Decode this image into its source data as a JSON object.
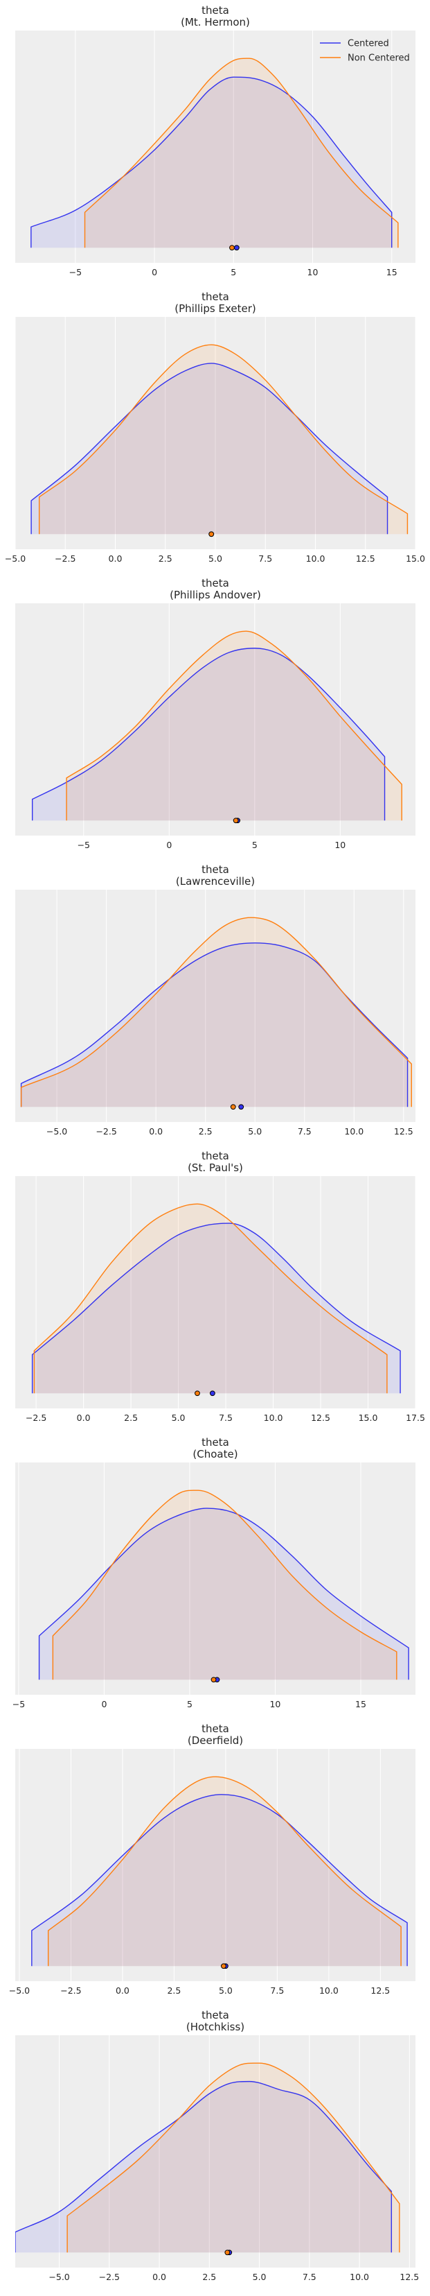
{
  "colors": {
    "centered": "#3333ee",
    "non_centered": "#ff7f0e",
    "panel_bg": "#eeeeee",
    "grid": "#ffffff"
  },
  "legend": {
    "placement": "top-right",
    "centered_label": "Centered",
    "non_centered_label": "Non Centered"
  },
  "chart_data": [
    {
      "type": "area",
      "title": "theta",
      "subtitle": "(Mt. Hermon)",
      "xlim": [
        -8.8,
        16.5
      ],
      "xticks": [
        -5,
        0,
        5,
        10,
        15
      ],
      "xtick_labels": [
        "−5",
        "0",
        "5",
        "10",
        "15"
      ],
      "grid": true,
      "legend": true,
      "series": [
        {
          "name": "Centered",
          "support": [
            -7.8,
            15.0
          ],
          "ymax": 0.083,
          "points": [
            [
              -7.8,
              0.01
            ],
            [
              -5,
              0.018
            ],
            [
              -2,
              0.034
            ],
            [
              0,
              0.047
            ],
            [
              2,
              0.063
            ],
            [
              3.5,
              0.076
            ],
            [
              5,
              0.082
            ],
            [
              6.5,
              0.081
            ],
            [
              8,
              0.076
            ],
            [
              10,
              0.063
            ],
            [
              12,
              0.044
            ],
            [
              13.5,
              0.03
            ],
            [
              15.0,
              0.017
            ]
          ],
          "mean": 5.2
        },
        {
          "name": "Non Centered",
          "support": [
            -4.4,
            15.4
          ],
          "points": [
            [
              -4.4,
              0.017
            ],
            [
              -2,
              0.034
            ],
            [
              0,
              0.05
            ],
            [
              2,
              0.067
            ],
            [
              3.5,
              0.081
            ],
            [
              5,
              0.09
            ],
            [
              6,
              0.091
            ],
            [
              7.5,
              0.083
            ],
            [
              9,
              0.068
            ],
            [
              11,
              0.046
            ],
            [
              13,
              0.028
            ],
            [
              15.4,
              0.012
            ]
          ],
          "mean": 4.9
        }
      ]
    },
    {
      "type": "area",
      "title": "theta",
      "subtitle": "(Phillips Exeter)",
      "xlim": [
        -5,
        15
      ],
      "xticks": [
        -5,
        -2.5,
        0,
        2.5,
        5,
        7.5,
        10,
        12.5,
        15
      ],
      "xtick_labels": [
        "−5.0",
        "−2.5",
        "0.0",
        "2.5",
        "5.0",
        "7.5",
        "10.0",
        "12.5",
        "15.0"
      ],
      "grid": true,
      "legend": false,
      "series": [
        {
          "name": "Centered",
          "support": [
            -4.2,
            13.6
          ],
          "points": [
            [
              -4.2,
              0.018
            ],
            [
              -2,
              0.037
            ],
            [
              0,
              0.058
            ],
            [
              2,
              0.078
            ],
            [
              3.5,
              0.088
            ],
            [
              4.8,
              0.092
            ],
            [
              6,
              0.088
            ],
            [
              7.5,
              0.079
            ],
            [
              9,
              0.064
            ],
            [
              10.5,
              0.048
            ],
            [
              12,
              0.034
            ],
            [
              13.6,
              0.02
            ]
          ],
          "mean": 4.8
        },
        {
          "name": "Non Centered",
          "support": [
            -3.8,
            14.6
          ],
          "points": [
            [
              -3.8,
              0.02
            ],
            [
              -2,
              0.034
            ],
            [
              0,
              0.056
            ],
            [
              2,
              0.082
            ],
            [
              3.5,
              0.097
            ],
            [
              4.8,
              0.102
            ],
            [
              6,
              0.097
            ],
            [
              7.5,
              0.083
            ],
            [
              9,
              0.064
            ],
            [
              10.5,
              0.045
            ],
            [
              12,
              0.029
            ],
            [
              14.6,
              0.011
            ]
          ],
          "mean": 4.8
        }
      ]
    },
    {
      "type": "area",
      "title": "theta",
      "subtitle": "(Phillips Andover)",
      "xlim": [
        -9.0,
        14.4
      ],
      "xticks": [
        -5,
        0,
        5,
        10
      ],
      "xtick_labels": [
        "−5",
        "0",
        "5",
        "10"
      ],
      "grid": true,
      "legend": false,
      "series": [
        {
          "name": "Centered",
          "support": [
            -8.0,
            12.6
          ],
          "points": [
            [
              -8.0,
              0.01
            ],
            [
              -6,
              0.018
            ],
            [
              -4,
              0.028
            ],
            [
              -2,
              0.042
            ],
            [
              0,
              0.058
            ],
            [
              2,
              0.072
            ],
            [
              3.5,
              0.079
            ],
            [
              5,
              0.081
            ],
            [
              6.5,
              0.078
            ],
            [
              8,
              0.069
            ],
            [
              10,
              0.053
            ],
            [
              11.5,
              0.04
            ],
            [
              12.6,
              0.03
            ]
          ],
          "mean": 4.0
        },
        {
          "name": "Non Centered",
          "support": [
            -6.0,
            13.6
          ],
          "points": [
            [
              -6.0,
              0.02
            ],
            [
              -4,
              0.03
            ],
            [
              -2,
              0.044
            ],
            [
              0,
              0.062
            ],
            [
              2,
              0.078
            ],
            [
              3.5,
              0.087
            ],
            [
              4.5,
              0.089
            ],
            [
              6,
              0.083
            ],
            [
              8,
              0.068
            ],
            [
              10,
              0.049
            ],
            [
              12,
              0.031
            ],
            [
              13.6,
              0.017
            ]
          ],
          "mean": 3.9
        }
      ]
    },
    {
      "type": "area",
      "title": "theta",
      "subtitle": "(Lawrenceville)",
      "xlim": [
        -7.1,
        13.1
      ],
      "xticks": [
        -5,
        -2.5,
        0,
        2.5,
        5,
        7.5,
        10,
        12.5
      ],
      "xtick_labels": [
        "−5.0",
        "−2.5",
        "0.0",
        "2.5",
        "5.0",
        "7.5",
        "10.0",
        "12.5"
      ],
      "grid": true,
      "legend": false,
      "series": [
        {
          "name": "Centered",
          "support": [
            -6.8,
            12.7
          ],
          "points": [
            [
              -6.8,
              0.012
            ],
            [
              -4,
              0.026
            ],
            [
              -2,
              0.042
            ],
            [
              0,
              0.06
            ],
            [
              2,
              0.075
            ],
            [
              3.5,
              0.082
            ],
            [
              5,
              0.084
            ],
            [
              6.5,
              0.082
            ],
            [
              8,
              0.075
            ],
            [
              9.5,
              0.058
            ],
            [
              11,
              0.042
            ],
            [
              12.7,
              0.025
            ]
          ],
          "mean": 4.3
        },
        {
          "name": "Non Centered",
          "support": [
            -6.8,
            12.9
          ],
          "points": [
            [
              -6.8,
              0.01
            ],
            [
              -4,
              0.022
            ],
            [
              -2,
              0.038
            ],
            [
              0,
              0.058
            ],
            [
              2,
              0.08
            ],
            [
              3.5,
              0.093
            ],
            [
              4.8,
              0.097
            ],
            [
              6,
              0.094
            ],
            [
              8,
              0.076
            ],
            [
              10,
              0.052
            ],
            [
              12.9,
              0.022
            ]
          ],
          "mean": 3.9
        }
      ]
    },
    {
      "type": "area",
      "title": "theta",
      "subtitle": "(St. Paul's)",
      "xlim": [
        -3.6,
        17.5
      ],
      "xticks": [
        -2.5,
        0,
        2.5,
        5,
        7.5,
        10,
        12.5,
        15,
        17.5
      ],
      "xtick_labels": [
        "−2.5",
        "0.0",
        "2.5",
        "5.0",
        "7.5",
        "10.0",
        "12.5",
        "15.0",
        "17.5"
      ],
      "grid": true,
      "legend": false,
      "series": [
        {
          "name": "Centered",
          "support": [
            -2.7,
            16.7
          ],
          "points": [
            [
              -2.7,
              0.02
            ],
            [
              -0.5,
              0.038
            ],
            [
              1.5,
              0.056
            ],
            [
              3.5,
              0.072
            ],
            [
              5,
              0.082
            ],
            [
              6.5,
              0.087
            ],
            [
              7.7,
              0.088
            ],
            [
              9,
              0.083
            ],
            [
              10.5,
              0.07
            ],
            [
              12,
              0.055
            ],
            [
              14,
              0.038
            ],
            [
              16.7,
              0.022
            ]
          ],
          "mean": 6.8
        },
        {
          "name": "Non Centered",
          "support": [
            -2.6,
            16.0
          ],
          "points": [
            [
              -2.6,
              0.022
            ],
            [
              -0.5,
              0.042
            ],
            [
              1.5,
              0.068
            ],
            [
              3.5,
              0.088
            ],
            [
              5,
              0.096
            ],
            [
              6,
              0.098
            ],
            [
              7.5,
              0.091
            ],
            [
              9,
              0.077
            ],
            [
              11,
              0.058
            ],
            [
              13,
              0.041
            ],
            [
              16.0,
              0.02
            ]
          ],
          "mean": 6.0
        }
      ]
    },
    {
      "type": "area",
      "title": "theta",
      "subtitle": "(Choate)",
      "xlim": [
        -5.2,
        18.2
      ],
      "xticks": [
        -5,
        0,
        5,
        10,
        15
      ],
      "xtick_labels": [
        "−5",
        "0",
        "5",
        "10",
        "15"
      ],
      "grid": true,
      "legend": false,
      "series": [
        {
          "name": "Centered",
          "support": [
            -3.8,
            17.8
          ],
          "points": [
            [
              -3.8,
              0.022
            ],
            [
              -1.5,
              0.04
            ],
            [
              0.5,
              0.058
            ],
            [
              2.5,
              0.074
            ],
            [
              4.5,
              0.083
            ],
            [
              6,
              0.086
            ],
            [
              7.5,
              0.084
            ],
            [
              9,
              0.077
            ],
            [
              11,
              0.062
            ],
            [
              13,
              0.045
            ],
            [
              15,
              0.032
            ],
            [
              17.8,
              0.016
            ]
          ],
          "mean": 6.6
        },
        {
          "name": "Non Centered",
          "support": [
            -3.0,
            17.1
          ],
          "points": [
            [
              -3.0,
              0.022
            ],
            [
              -1,
              0.04
            ],
            [
              1,
              0.064
            ],
            [
              3,
              0.084
            ],
            [
              4.5,
              0.094
            ],
            [
              5.5,
              0.095
            ],
            [
              7,
              0.089
            ],
            [
              9,
              0.072
            ],
            [
              11,
              0.052
            ],
            [
              13,
              0.036
            ],
            [
              15,
              0.024
            ],
            [
              17.1,
              0.014
            ]
          ],
          "mean": 6.4
        }
      ]
    },
    {
      "type": "area",
      "title": "theta",
      "subtitle": "(Deerfield)",
      "xlim": [
        -5.2,
        14.2
      ],
      "xticks": [
        -5,
        -2.5,
        0,
        2.5,
        5,
        7.5,
        10,
        12.5
      ],
      "xtick_labels": [
        "−5.0",
        "−2.5",
        "0.0",
        "2.5",
        "5.0",
        "7.5",
        "10.0",
        "12.5"
      ],
      "grid": true,
      "legend": false,
      "series": [
        {
          "name": "Centered",
          "support": [
            -4.4,
            13.8
          ],
          "points": [
            [
              -4.4,
              0.018
            ],
            [
              -2,
              0.036
            ],
            [
              0,
              0.056
            ],
            [
              2,
              0.075
            ],
            [
              3.5,
              0.084
            ],
            [
              4.8,
              0.087
            ],
            [
              6,
              0.085
            ],
            [
              7.5,
              0.077
            ],
            [
              9,
              0.063
            ],
            [
              10.5,
              0.048
            ],
            [
              12,
              0.034
            ],
            [
              13.8,
              0.022
            ]
          ],
          "mean": 5.0
        },
        {
          "name": "Non Centered",
          "support": [
            -3.6,
            13.5
          ],
          "points": [
            [
              -3.6,
              0.018
            ],
            [
              -2,
              0.031
            ],
            [
              0,
              0.054
            ],
            [
              2,
              0.08
            ],
            [
              3.5,
              0.093
            ],
            [
              4.5,
              0.096
            ],
            [
              6,
              0.091
            ],
            [
              7.5,
              0.078
            ],
            [
              9,
              0.061
            ],
            [
              11,
              0.04
            ],
            [
              13.5,
              0.02
            ]
          ],
          "mean": 4.9
        }
      ]
    },
    {
      "type": "area",
      "title": "theta",
      "subtitle": "(Hotchkiss)",
      "xlim": [
        -7.2,
        12.8
      ],
      "xticks": [
        -5,
        -2.5,
        0,
        2.5,
        5,
        7.5,
        10,
        12.5
      ],
      "xtick_labels": [
        "−5.0",
        "−2.5",
        "0.0",
        "2.5",
        "5.0",
        "7.5",
        "10.0",
        "12.5"
      ],
      "grid": true,
      "legend": false,
      "series": [
        {
          "name": "Centered",
          "support": [
            -7.2,
            11.6
          ],
          "points": [
            [
              -7.2,
              0.01
            ],
            [
              -5,
              0.02
            ],
            [
              -3,
              0.036
            ],
            [
              -1,
              0.052
            ],
            [
              1,
              0.066
            ],
            [
              2.5,
              0.078
            ],
            [
              3.5,
              0.083
            ],
            [
              4.5,
              0.084
            ],
            [
              6,
              0.08
            ],
            [
              7.5,
              0.075
            ],
            [
              9,
              0.06
            ],
            [
              10.5,
              0.042
            ],
            [
              11.6,
              0.03
            ]
          ],
          "mean": 3.5
        },
        {
          "name": "Non Centered",
          "support": [
            -4.6,
            12.0
          ],
          "points": [
            [
              -4.6,
              0.018
            ],
            [
              -3,
              0.03
            ],
            [
              -1,
              0.046
            ],
            [
              1,
              0.066
            ],
            [
              2.5,
              0.082
            ],
            [
              4,
              0.092
            ],
            [
              5,
              0.093
            ],
            [
              6.5,
              0.087
            ],
            [
              8,
              0.074
            ],
            [
              10,
              0.05
            ],
            [
              12.0,
              0.024
            ]
          ],
          "mean": 3.4
        }
      ]
    }
  ]
}
